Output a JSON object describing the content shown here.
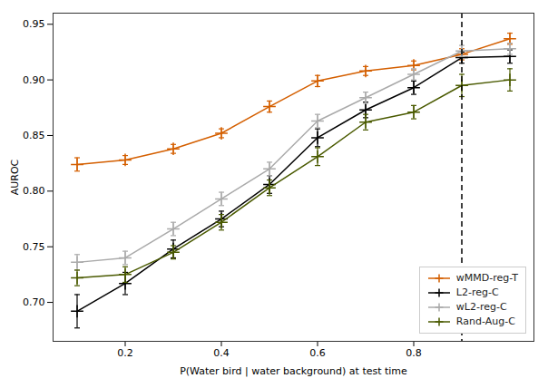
{
  "chart_data": {
    "type": "line",
    "xlabel": "P(Water bird | water background) at test time",
    "ylabel": "AUROC",
    "x": [
      0.1,
      0.2,
      0.3,
      0.4,
      0.5,
      0.6,
      0.7,
      0.8,
      0.9,
      1.0
    ],
    "xlim": [
      0.05,
      1.05
    ],
    "xticks": [
      0.2,
      0.4,
      0.6,
      0.8
    ],
    "ylim": [
      0.665,
      0.96
    ],
    "yticks": [
      {
        "value": 0.7,
        "label": "0.70"
      },
      0.75,
      {
        "value": 0.8,
        "label": "0.80"
      },
      0.85,
      {
        "value": 0.9,
        "label": "0.90"
      },
      0.95
    ],
    "grid": false,
    "legend": "lower right",
    "series": [
      {
        "name": "wMMD-reg-T",
        "color": "#d45f00",
        "marker": "plus",
        "line_style": "solid",
        "values": [
          0.824,
          0.828,
          0.838,
          0.852,
          0.876,
          0.899,
          0.908,
          0.913,
          0.923,
          0.937
        ],
        "yerr": [
          0.006,
          0.004,
          0.004,
          0.004,
          0.005,
          0.005,
          0.004,
          0.004,
          0.005,
          0.005
        ]
      },
      {
        "name": "L2-reg-C",
        "color": "#000000",
        "marker": "plus",
        "line_style": "solid",
        "values": [
          0.692,
          0.717,
          0.748,
          0.775,
          0.806,
          0.848,
          0.873,
          0.893,
          0.92,
          0.921
        ],
        "yerr": [
          0.015,
          0.01,
          0.008,
          0.007,
          0.008,
          0.008,
          0.007,
          0.006,
          0.005,
          0.006
        ]
      },
      {
        "name": "wL2-reg-C",
        "color": "#aaaaaa",
        "marker": "plus",
        "line_style": "solid",
        "values": [
          0.736,
          0.74,
          0.766,
          0.793,
          0.82,
          0.863,
          0.884,
          0.905,
          0.926,
          0.928
        ],
        "yerr": [
          0.007,
          0.006,
          0.006,
          0.006,
          0.006,
          0.006,
          0.005,
          0.005,
          0.005,
          0.005
        ]
      },
      {
        "name": "Rand-Aug-C",
        "color": "#4a5a00",
        "marker": "plus",
        "line_style": "solid",
        "values": [
          0.722,
          0.725,
          0.745,
          0.772,
          0.803,
          0.831,
          0.862,
          0.871,
          0.895,
          0.9
        ],
        "yerr": [
          0.007,
          0.007,
          0.006,
          0.007,
          0.007,
          0.008,
          0.007,
          0.006,
          0.01,
          0.01
        ]
      }
    ],
    "vlines": [
      {
        "x": 0.9,
        "color": "#000000",
        "line_style": "dashed"
      }
    ]
  }
}
